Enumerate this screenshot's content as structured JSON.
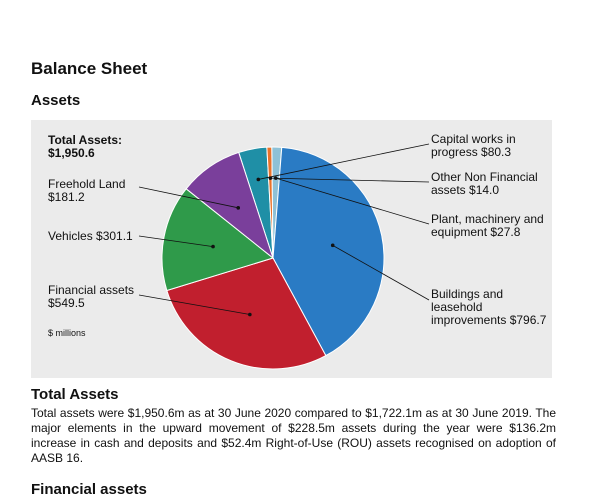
{
  "page": {
    "heading": "Balance Sheet",
    "subheading": "Assets",
    "section_title": "Total Assets",
    "paragraph": "Total assets were $1,950.6m as at 30 June 2020 compared to $1,722.1m as at 30 June 2019. The major elements in the upward movement of $228.5m assets during the year were $136.2m increase in cash and deposits and $52.4m Right-of-Use (ROU) assets recognised on adoption of AASB 16.",
    "next_section_title": "Financial assets"
  },
  "chart_data": {
    "type": "pie",
    "total_label": "Total Assets:\n$1,950.6",
    "units_note": "$ millions",
    "slices": [
      {
        "name": "Capital works in progress",
        "label": "Capital works in\nprogress $80.3",
        "value": 80.3,
        "color": "#1f8fa6"
      },
      {
        "name": "Other Non Financial assets",
        "label": "Other Non Financial\nassets $14.0",
        "value": 14.0,
        "color": "#e8722a"
      },
      {
        "name": "Plant, machinery and equipment",
        "label": "Plant, machinery and\nequipment $27.8",
        "value": 27.8,
        "color": "#8ec1d6"
      },
      {
        "name": "Buildings and leasehold improvements",
        "label": "Buildings and\nleasehold\nimprovements $796.7",
        "value": 796.7,
        "color": "#2a7bc4"
      },
      {
        "name": "Financial assets",
        "label": "Financial assets\n$549.5",
        "value": 549.5,
        "color": "#c11f2e"
      },
      {
        "name": "Vehicles",
        "label": "Vehicles $301.1",
        "value": 301.1,
        "color": "#2f9a4a"
      },
      {
        "name": "Freehold Land",
        "label": "Freehold Land\n$181.2",
        "value": 181.2,
        "color": "#7a3f9b"
      }
    ]
  }
}
